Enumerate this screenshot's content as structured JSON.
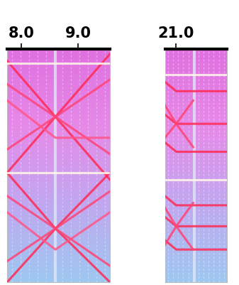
{
  "chart_data": [
    {
      "type": "line",
      "tick_labels": "x",
      "xlim": [
        7.75,
        9.56
      ],
      "ylim": [
        0,
        1
      ],
      "xticks": [
        {
          "value": 8.0,
          "label": "8.0"
        },
        {
          "value": 9.0,
          "label": "9.0"
        }
      ],
      "yticks": [],
      "series": [
        {
          "color": "#ff2a55",
          "x": [
            7.75,
            8.6,
            9.56
          ],
          "values": [
            0.95,
            0.71,
            0.44
          ]
        },
        {
          "color": "#ff2a55",
          "x": [
            7.75,
            8.6,
            9.56
          ],
          "values": [
            0.47,
            0.71,
            0.98
          ]
        },
        {
          "color": "#ff2a55",
          "x": [
            7.75,
            8.6,
            9.56
          ],
          "values": [
            0.47,
            0.23,
            0.0
          ]
        },
        {
          "color": "#ff2a55",
          "x": [
            7.75,
            8.6,
            9.56
          ],
          "values": [
            0.0,
            0.23,
            0.47
          ]
        },
        {
          "color": "#ff4477",
          "x": [
            7.75,
            8.6,
            9.56
          ],
          "values": [
            0.85,
            0.71,
            0.55
          ]
        },
        {
          "color": "#ff4477",
          "x": [
            7.75,
            8.6,
            9.56
          ],
          "values": [
            0.57,
            0.71,
            0.87
          ]
        },
        {
          "color": "#ff4477",
          "x": [
            7.75,
            8.6,
            9.56
          ],
          "values": [
            0.37,
            0.23,
            0.07
          ]
        },
        {
          "color": "#ff4477",
          "x": [
            7.75,
            8.6,
            9.56
          ],
          "values": [
            0.09,
            0.23,
            0.39
          ]
        },
        {
          "color": "#ff5588",
          "x": [
            7.75,
            8.6,
            9.56
          ],
          "values": [
            0.78,
            0.62,
            0.62
          ]
        },
        {
          "color": "#ff5588",
          "x": [
            7.75,
            8.6,
            9.56
          ],
          "values": [
            0.3,
            0.14,
            0.3
          ]
        },
        {
          "color": "#fff8e8",
          "x": [
            7.75,
            9.56
          ],
          "values": [
            0.94,
            0.94
          ]
        },
        {
          "color": "#fff8e8",
          "x": [
            7.75,
            9.56
          ],
          "values": [
            0.47,
            0.47
          ]
        }
      ]
    },
    {
      "type": "line",
      "tick_labels": "x",
      "xlim": [
        20.8,
        21.9
      ],
      "ylim": [
        0,
        1
      ],
      "xticks": [
        {
          "value": 21.0,
          "label": "21.0"
        }
      ],
      "yticks": [],
      "series": [
        {
          "color": "#ff2a55",
          "x": [
            20.8,
            21.0,
            21.9
          ],
          "values": [
            0.86,
            0.82,
            0.82
          ]
        },
        {
          "color": "#ff2a55",
          "x": [
            20.8,
            21.0,
            21.9
          ],
          "values": [
            0.72,
            0.68,
            0.68
          ]
        },
        {
          "color": "#ff2a55",
          "x": [
            20.8,
            21.0,
            21.9
          ],
          "values": [
            0.6,
            0.56,
            0.56
          ]
        },
        {
          "color": "#ff2a55",
          "x": [
            20.8,
            21.0,
            21.9
          ],
          "values": [
            0.37,
            0.33,
            0.33
          ]
        },
        {
          "color": "#ff2a55",
          "x": [
            20.8,
            21.0,
            21.9
          ],
          "values": [
            0.28,
            0.24,
            0.24
          ]
        },
        {
          "color": "#ff2a55",
          "x": [
            20.8,
            21.0,
            21.9
          ],
          "values": [
            0.18,
            0.14,
            0.14
          ]
        },
        {
          "color": "#ff4477",
          "x": [
            20.8,
            21.0,
            21.3
          ],
          "values": [
            0.76,
            0.68,
            0.58
          ]
        },
        {
          "color": "#ff4477",
          "x": [
            20.8,
            21.0,
            21.3
          ],
          "values": [
            0.62,
            0.68,
            0.78
          ]
        },
        {
          "color": "#ff4477",
          "x": [
            20.8,
            21.0,
            21.3
          ],
          "values": [
            0.32,
            0.24,
            0.14
          ]
        },
        {
          "color": "#ff4477",
          "x": [
            20.8,
            21.0,
            21.3
          ],
          "values": [
            0.16,
            0.24,
            0.34
          ]
        },
        {
          "color": "#fff8e8",
          "x": [
            20.8,
            21.9
          ],
          "values": [
            0.89,
            0.89
          ]
        },
        {
          "color": "#fff8e8",
          "x": [
            20.8,
            21.9
          ],
          "values": [
            0.44,
            0.44
          ]
        }
      ]
    }
  ]
}
